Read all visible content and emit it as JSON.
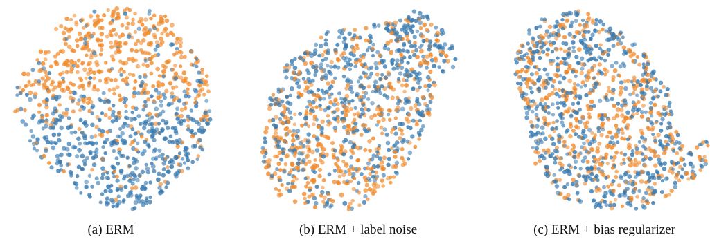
{
  "colors": {
    "class_blue": "#3a7bb0",
    "class_orange": "#f08a2c"
  },
  "chart_data": [
    {
      "type": "scatter",
      "title": "",
      "caption": "(a) ERM",
      "series": [
        {
          "color": "#3a7bb0"
        },
        {
          "color": "#f08a2c"
        }
      ]
    },
    {
      "type": "scatter",
      "title": "",
      "caption": "(b) ERM + label noise",
      "series": [
        {
          "color": "#3a7bb0"
        },
        {
          "color": "#f08a2c"
        }
      ]
    },
    {
      "type": "scatter",
      "title": "",
      "caption": "(c) ERM + bias regularizer",
      "series": [
        {
          "color": "#3a7bb0"
        },
        {
          "color": "#f08a2c"
        }
      ]
    }
  ]
}
